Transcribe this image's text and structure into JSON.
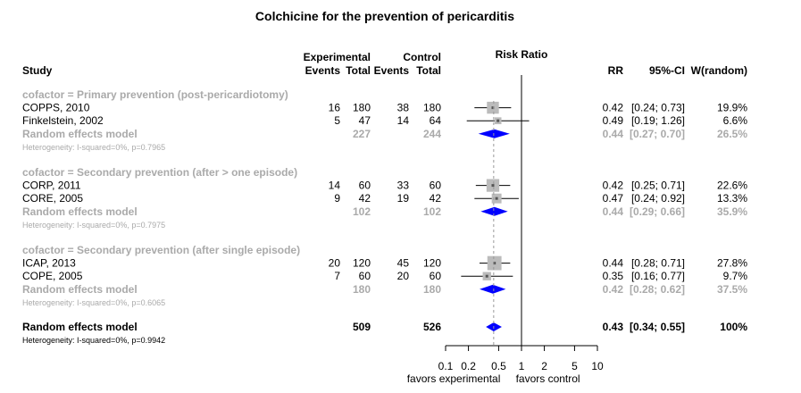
{
  "chart_data": {
    "type": "forest",
    "title": "Colchicine for the prevention of pericarditis",
    "column_headers": {
      "study": "Study",
      "experimental": "Experimental",
      "control": "Control",
      "events": "Events",
      "total": "Total",
      "risk_ratio": "Risk Ratio",
      "rr": "RR",
      "ci": "95%-CI",
      "weight": "W(random)"
    },
    "groups": [
      {
        "label": "cofactor = Primary prevention (post-pericardiotomy)",
        "studies": [
          {
            "name": "COPPS, 2010",
            "exp_events": "16",
            "exp_total": "180",
            "ctrl_events": "38",
            "ctrl_total": "180",
            "rr": 0.42,
            "lower": 0.24,
            "upper": 0.73,
            "rr_text": "0.42",
            "ci_text": "[0.24; 0.73]",
            "weight_text": "19.9%",
            "weight": 19.9
          },
          {
            "name": "Finkelstein, 2002",
            "exp_events": "5",
            "exp_total": "47",
            "ctrl_events": "14",
            "ctrl_total": "64",
            "rr": 0.49,
            "lower": 0.19,
            "upper": 1.26,
            "rr_text": "0.49",
            "ci_text": "[0.19; 1.26]",
            "weight_text": "6.6%",
            "weight": 6.6
          }
        ],
        "subtotal": {
          "label": "Random effects model",
          "exp_total": "227",
          "ctrl_total": "244",
          "rr": 0.44,
          "lower": 0.27,
          "upper": 0.7,
          "rr_text": "0.44",
          "ci_text": "[0.27; 0.70]",
          "weight_text": "26.5%"
        },
        "heterogeneity": "Heterogeneity: I-squared=0%, p=0.7965"
      },
      {
        "label": "cofactor = Secondary prevention (after > one episode)",
        "studies": [
          {
            "name": "CORP, 2011",
            "exp_events": "14",
            "exp_total": "60",
            "ctrl_events": "33",
            "ctrl_total": "60",
            "rr": 0.42,
            "lower": 0.25,
            "upper": 0.71,
            "rr_text": "0.42",
            "ci_text": "[0.25; 0.71]",
            "weight_text": "22.6%",
            "weight": 22.6
          },
          {
            "name": "CORE, 2005",
            "exp_events": "9",
            "exp_total": "42",
            "ctrl_events": "19",
            "ctrl_total": "42",
            "rr": 0.47,
            "lower": 0.24,
            "upper": 0.92,
            "rr_text": "0.47",
            "ci_text": "[0.24; 0.92]",
            "weight_text": "13.3%",
            "weight": 13.3
          }
        ],
        "subtotal": {
          "label": "Random effects model",
          "exp_total": "102",
          "ctrl_total": "102",
          "rr": 0.44,
          "lower": 0.29,
          "upper": 0.66,
          "rr_text": "0.44",
          "ci_text": "[0.29; 0.66]",
          "weight_text": "35.9%"
        },
        "heterogeneity": "Heterogeneity: I-squared=0%, p=0.7975"
      },
      {
        "label": "cofactor = Secondary prevention (after single episode)",
        "studies": [
          {
            "name": "ICAP, 2013",
            "exp_events": "20",
            "exp_total": "120",
            "ctrl_events": "45",
            "ctrl_total": "120",
            "rr": 0.44,
            "lower": 0.28,
            "upper": 0.71,
            "rr_text": "0.44",
            "ci_text": "[0.28; 0.71]",
            "weight_text": "27.8%",
            "weight": 27.8
          },
          {
            "name": "COPE, 2005",
            "exp_events": "7",
            "exp_total": "60",
            "ctrl_events": "20",
            "ctrl_total": "60",
            "rr": 0.35,
            "lower": 0.16,
            "upper": 0.77,
            "rr_text": "0.35",
            "ci_text": "[0.16; 0.77]",
            "weight_text": "9.7%",
            "weight": 9.7
          }
        ],
        "subtotal": {
          "label": "Random effects model",
          "exp_total": "180",
          "ctrl_total": "180",
          "rr": 0.42,
          "lower": 0.28,
          "upper": 0.62,
          "rr_text": "0.42",
          "ci_text": "[0.28; 0.62]",
          "weight_text": "37.5%"
        },
        "heterogeneity": "Heterogeneity: I-squared=0%, p=0.6065"
      }
    ],
    "overall": {
      "label": "Random effects model",
      "exp_total": "509",
      "ctrl_total": "526",
      "rr": 0.43,
      "lower": 0.34,
      "upper": 0.55,
      "rr_text": "0.43",
      "ci_text": "[0.34; 0.55]",
      "weight_text": "100%",
      "heterogeneity": "Heterogeneity: I-squared=0%, p=0.9942"
    },
    "x_axis": {
      "scale": "log",
      "xlim": [
        0.1,
        10
      ],
      "ticks": [
        0.1,
        0.2,
        0.5,
        1,
        2,
        5,
        10
      ],
      "tick_labels": [
        "0.1",
        "0.2",
        "0.5",
        "1",
        "2",
        "5",
        "10"
      ],
      "null_value": 1,
      "label_left": "favors experimental",
      "label_right": "favors control"
    },
    "colors": {
      "text": "#000000",
      "subgroup_text": "#aaaaaa",
      "diamond": "#0000ff",
      "square": "#bbbbbb",
      "dashed_line": "#999999"
    }
  }
}
